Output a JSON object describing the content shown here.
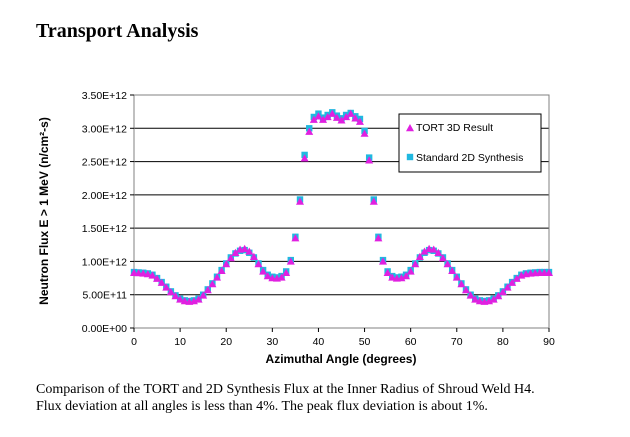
{
  "page": {
    "title": "Transport Analysis",
    "caption_line1": "Comparison of the TORT and 2D Synthesis Flux at the Inner Radius of Shroud Weld H4.",
    "caption_line2": "Flux deviation at all angles is less than 4%.  The peak flux deviation is about 1%."
  },
  "colors": {
    "tort": "#e020e0",
    "synthesis": "#20b8e0",
    "gridline": "#000000",
    "plot_background": "#ffffff"
  },
  "chart_data": {
    "type": "scatter",
    "title": "",
    "xlabel": "Azimuthal Angle (degrees)",
    "ylabel": "Neutron Flux E > 1 MeV  (n/cm²-s)",
    "xlim": [
      0,
      90
    ],
    "ylim": [
      0,
      3500000000000.0
    ],
    "x_ticks": [
      0,
      10,
      20,
      30,
      40,
      50,
      60,
      70,
      80,
      90
    ],
    "x_tick_labels": [
      "0",
      "10",
      "20",
      "30",
      "40",
      "50",
      "60",
      "70",
      "80",
      "90"
    ],
    "y_ticks": [
      0,
      500000000000.0,
      1000000000000.0,
      1500000000000.0,
      2000000000000.0,
      2500000000000.0,
      3000000000000.0,
      3500000000000.0
    ],
    "y_tick_labels": [
      "0.00E+00",
      "5.00E+11",
      "1.00E+12",
      "1.50E+12",
      "2.00E+12",
      "2.50E+12",
      "3.00E+12",
      "3.50E+12"
    ],
    "grid": "horizontal",
    "legend_position": "top-right",
    "x": [
      0,
      1,
      2,
      3,
      4,
      5,
      6,
      7,
      8,
      9,
      10,
      11,
      12,
      13,
      14,
      15,
      16,
      17,
      18,
      19,
      20,
      21,
      22,
      23,
      24,
      25,
      26,
      27,
      28,
      29,
      30,
      31,
      32,
      33,
      34,
      35,
      36,
      37,
      38,
      39,
      40,
      41,
      42,
      43,
      44,
      45,
      46,
      47,
      48,
      49,
      50,
      51,
      52,
      53,
      54,
      55,
      56,
      57,
      58,
      59,
      60,
      61,
      62,
      63,
      64,
      65,
      66,
      67,
      68,
      69,
      70,
      71,
      72,
      73,
      74,
      75,
      76,
      77,
      78,
      79,
      80,
      81,
      82,
      83,
      84,
      85,
      86,
      87,
      88,
      89,
      90
    ],
    "series": [
      {
        "name": "TORT 3D Result",
        "marker": "triangle",
        "values": [
          830000000000.0,
          825000000000.0,
          820000000000.0,
          810000000000.0,
          790000000000.0,
          740000000000.0,
          680000000000.0,
          610000000000.0,
          540000000000.0,
          480000000000.0,
          430000000000.0,
          405000000000.0,
          395000000000.0,
          405000000000.0,
          430000000000.0,
          490000000000.0,
          570000000000.0,
          660000000000.0,
          760000000000.0,
          860000000000.0,
          960000000000.0,
          1050000000000.0,
          1130000000000.0,
          1180000000000.0,
          1190000000000.0,
          1150000000000.0,
          1070000000000.0,
          960000000000.0,
          850000000000.0,
          780000000000.0,
          750000000000.0,
          745000000000.0,
          760000000000.0,
          830000000000.0,
          1000000000000.0,
          1350000000000.0,
          1900000000000.0,
          2550000000000.0,
          2950000000000.0,
          3130000000000.0,
          3180000000000.0,
          3130000000000.0,
          3170000000000.0,
          3220000000000.0,
          3160000000000.0,
          3120000000000.0,
          3170000000000.0,
          3220000000000.0,
          3150000000000.0,
          3100000000000.0,
          2920000000000.0,
          2520000000000.0,
          1900000000000.0,
          1350000000000.0,
          1000000000000.0,
          830000000000.0,
          760000000000.0,
          745000000000.0,
          750000000000.0,
          780000000000.0,
          850000000000.0,
          960000000000.0,
          1070000000000.0,
          1150000000000.0,
          1190000000000.0,
          1180000000000.0,
          1130000000000.0,
          1050000000000.0,
          960000000000.0,
          860000000000.0,
          760000000000.0,
          660000000000.0,
          570000000000.0,
          490000000000.0,
          430000000000.0,
          405000000000.0,
          395000000000.0,
          405000000000.0,
          430000000000.0,
          480000000000.0,
          540000000000.0,
          610000000000.0,
          680000000000.0,
          740000000000.0,
          790000000000.0,
          810000000000.0,
          820000000000.0,
          825000000000.0,
          830000000000.0,
          830000000000.0,
          830000000000.0
        ]
      },
      {
        "name": "Standard 2D Synthesis",
        "marker": "square",
        "values": [
          840000000000.0,
          835000000000.0,
          830000000000.0,
          820000000000.0,
          800000000000.0,
          750000000000.0,
          690000000000.0,
          620000000000.0,
          550000000000.0,
          490000000000.0,
          440000000000.0,
          415000000000.0,
          405000000000.0,
          415000000000.0,
          440000000000.0,
          500000000000.0,
          580000000000.0,
          670000000000.0,
          770000000000.0,
          870000000000.0,
          970000000000.0,
          1060000000000.0,
          1120000000000.0,
          1160000000000.0,
          1170000000000.0,
          1130000000000.0,
          1060000000000.0,
          970000000000.0,
          870000000000.0,
          800000000000.0,
          770000000000.0,
          760000000000.0,
          780000000000.0,
          850000000000.0,
          1020000000000.0,
          1370000000000.0,
          1930000000000.0,
          2600000000000.0,
          3000000000000.0,
          3170000000000.0,
          3220000000000.0,
          3160000000000.0,
          3200000000000.0,
          3240000000000.0,
          3190000000000.0,
          3150000000000.0,
          3200000000000.0,
          3230000000000.0,
          3180000000000.0,
          3140000000000.0,
          2960000000000.0,
          2560000000000.0,
          1930000000000.0,
          1370000000000.0,
          1020000000000.0,
          850000000000.0,
          780000000000.0,
          760000000000.0,
          770000000000.0,
          800000000000.0,
          870000000000.0,
          970000000000.0,
          1060000000000.0,
          1130000000000.0,
          1170000000000.0,
          1160000000000.0,
          1120000000000.0,
          1060000000000.0,
          970000000000.0,
          870000000000.0,
          770000000000.0,
          670000000000.0,
          580000000000.0,
          500000000000.0,
          440000000000.0,
          415000000000.0,
          405000000000.0,
          415000000000.0,
          440000000000.0,
          490000000000.0,
          550000000000.0,
          620000000000.0,
          690000000000.0,
          750000000000.0,
          800000000000.0,
          820000000000.0,
          830000000000.0,
          835000000000.0,
          840000000000.0,
          840000000000.0,
          840000000000.0
        ]
      }
    ]
  }
}
